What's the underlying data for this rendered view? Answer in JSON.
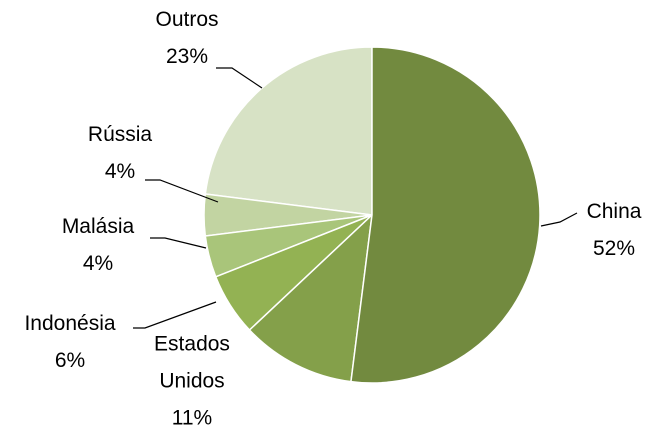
{
  "chart_data": {
    "type": "pie",
    "categories": [
      "China",
      "Estados Unidos",
      "Indonésia",
      "Malásia",
      "Rússia",
      "Outros"
    ],
    "values": [
      52,
      11,
      6,
      4,
      4,
      23
    ],
    "value_labels": [
      "52%",
      "11%",
      "6%",
      "4%",
      "4%",
      "23%"
    ],
    "colors": [
      "#728a3f",
      "#84a04a",
      "#93b253",
      "#a9c57a",
      "#c2d4a2",
      "#d7e2c5"
    ]
  }
}
